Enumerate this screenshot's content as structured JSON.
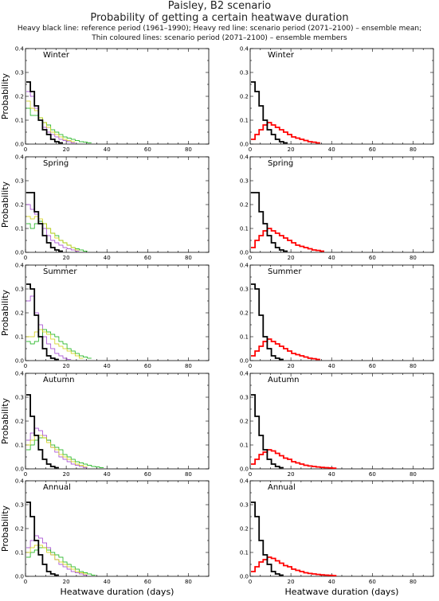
{
  "header": {
    "title": "Paisley, B2 scenario",
    "subtitle": "Probability of getting a certain heatwave duration",
    "note1": "Heavy black line: reference period (1961–1990); Heavy red line: scenario period (2071–2100) – ensemble mean;",
    "note2": "Thin coloured lines: scenario period (2071–2100) – ensemble members"
  },
  "colors": {
    "reference": "#000000",
    "ensemble_mean": "#ff0000",
    "members": [
      "#9933cc",
      "#00aa00",
      "#cccc00",
      "#3366ff",
      "#ff8800",
      "#00aaaa"
    ]
  },
  "chart_data": [
    {
      "season": "Winter",
      "panel": "left",
      "type": "line",
      "ylabel": "Probability",
      "xlabel": "",
      "xlim": [
        0,
        90
      ],
      "ylim": [
        0,
        0.4
      ],
      "x_ticks": [
        0,
        20,
        40,
        60,
        80
      ],
      "y_ticks": [
        "0.0",
        "0.1",
        "0.2",
        "0.3",
        "0.4"
      ],
      "reference": [
        0.26,
        0.22,
        0.16,
        0.1,
        0.06,
        0.04,
        0.02,
        0.01,
        0.005
      ],
      "members": [
        [
          0.22,
          0.2,
          0.15,
          0.1,
          0.07,
          0.05,
          0.04,
          0.03,
          0.02,
          0.015,
          0.01,
          0.005
        ],
        [
          0.15,
          0.12,
          0.12,
          0.11,
          0.09,
          0.08,
          0.06,
          0.05,
          0.04,
          0.03,
          0.025,
          0.02,
          0.015,
          0.01,
          0.008,
          0.005
        ],
        [
          0.18,
          0.15,
          0.14,
          0.11,
          0.09,
          0.07,
          0.05,
          0.04,
          0.03,
          0.02,
          0.015,
          0.01
        ]
      ]
    },
    {
      "season": "Winter",
      "panel": "right",
      "type": "line",
      "ylabel": "",
      "xlabel": "",
      "xlim": [
        0,
        90
      ],
      "ylim": [
        0,
        0.4
      ],
      "x_ticks": [
        0,
        20,
        40,
        60,
        80
      ],
      "y_ticks": [
        "0.0",
        "0.1",
        "0.2",
        "0.3",
        "0.4"
      ],
      "reference": [
        0.26,
        0.22,
        0.16,
        0.1,
        0.06,
        0.04,
        0.02,
        0.01,
        0.005
      ],
      "mean": [
        0.02,
        0.04,
        0.06,
        0.08,
        0.09,
        0.08,
        0.07,
        0.06,
        0.05,
        0.04,
        0.03,
        0.025,
        0.02,
        0.015,
        0.01,
        0.008,
        0.005
      ]
    },
    {
      "season": "Spring",
      "panel": "left",
      "type": "line",
      "ylabel": "Probability",
      "xlabel": "",
      "xlim": [
        0,
        90
      ],
      "ylim": [
        0,
        0.4
      ],
      "x_ticks": [
        0,
        20,
        40,
        60,
        80
      ],
      "y_ticks": [
        "0.0",
        "0.1",
        "0.2",
        "0.3",
        "0.4"
      ],
      "reference": [
        0.25,
        0.25,
        0.17,
        0.12,
        0.07,
        0.04,
        0.02,
        0.01,
        0.005
      ],
      "members": [
        [
          0.2,
          0.18,
          0.16,
          0.13,
          0.1,
          0.07,
          0.05,
          0.04,
          0.03,
          0.02,
          0.015,
          0.01,
          0.005
        ],
        [
          0.12,
          0.1,
          0.12,
          0.13,
          0.12,
          0.1,
          0.08,
          0.07,
          0.05,
          0.04,
          0.03,
          0.02,
          0.015,
          0.01,
          0.005
        ],
        [
          0.15,
          0.14,
          0.15,
          0.14,
          0.12,
          0.1,
          0.08,
          0.06,
          0.05,
          0.04,
          0.03,
          0.02,
          0.01
        ]
      ]
    },
    {
      "season": "Spring",
      "panel": "right",
      "type": "line",
      "ylabel": "",
      "xlabel": "",
      "xlim": [
        0,
        90
      ],
      "ylim": [
        0,
        0.4
      ],
      "x_ticks": [
        0,
        20,
        40,
        60,
        80
      ],
      "y_ticks": [
        "0.0",
        "0.1",
        "0.2",
        "0.3",
        "0.4"
      ],
      "reference": [
        0.25,
        0.25,
        0.17,
        0.12,
        0.07,
        0.04,
        0.02,
        0.01,
        0.005
      ],
      "mean": [
        0.02,
        0.05,
        0.07,
        0.09,
        0.1,
        0.09,
        0.08,
        0.07,
        0.06,
        0.05,
        0.04,
        0.03,
        0.025,
        0.02,
        0.015,
        0.01,
        0.008,
        0.005
      ]
    },
    {
      "season": "Summer",
      "panel": "left",
      "type": "line",
      "ylabel": "Probability",
      "xlabel": "",
      "xlim": [
        0,
        90
      ],
      "ylim": [
        0,
        0.4
      ],
      "x_ticks": [
        0,
        20,
        40,
        60,
        80
      ],
      "y_ticks": [
        "0.0",
        "0.1",
        "0.2",
        "0.3",
        "0.4"
      ],
      "reference": [
        0.32,
        0.3,
        0.19,
        0.1,
        0.05,
        0.02,
        0.01,
        0.005
      ],
      "members": [
        [
          0.25,
          0.27,
          0.2,
          0.15,
          0.1,
          0.07,
          0.05,
          0.03,
          0.02,
          0.01,
          0.005
        ],
        [
          0.08,
          0.07,
          0.08,
          0.1,
          0.13,
          0.12,
          0.11,
          0.1,
          0.08,
          0.07,
          0.05,
          0.04,
          0.03,
          0.02,
          0.015,
          0.01
        ],
        [
          0.1,
          0.1,
          0.12,
          0.13,
          0.12,
          0.11,
          0.09,
          0.07,
          0.06,
          0.05,
          0.04,
          0.03,
          0.02,
          0.01
        ]
      ]
    },
    {
      "season": "Summer",
      "panel": "right",
      "type": "line",
      "ylabel": "",
      "xlabel": "",
      "xlim": [
        0,
        90
      ],
      "ylim": [
        0,
        0.4
      ],
      "x_ticks": [
        0,
        20,
        40,
        60,
        80
      ],
      "y_ticks": [
        "0.0",
        "0.1",
        "0.2",
        "0.3",
        "0.4"
      ],
      "reference": [
        0.32,
        0.3,
        0.19,
        0.1,
        0.05,
        0.02,
        0.01,
        0.005
      ],
      "mean": [
        0.02,
        0.04,
        0.06,
        0.08,
        0.09,
        0.08,
        0.07,
        0.06,
        0.05,
        0.04,
        0.03,
        0.025,
        0.02,
        0.015,
        0.01,
        0.008,
        0.005
      ]
    },
    {
      "season": "Autumn",
      "panel": "left",
      "type": "line",
      "ylabel": "Probability",
      "xlabel": "",
      "xlim": [
        0,
        90
      ],
      "ylim": [
        0,
        0.4
      ],
      "x_ticks": [
        0,
        20,
        40,
        60,
        80
      ],
      "y_ticks": [
        "0.0",
        "0.1",
        "0.2",
        "0.3",
        "0.4"
      ],
      "reference": [
        0.31,
        0.22,
        0.14,
        0.08,
        0.04,
        0.02,
        0.01,
        0.005
      ],
      "members": [
        [
          0.12,
          0.15,
          0.17,
          0.16,
          0.14,
          0.12,
          0.09,
          0.07,
          0.05,
          0.04,
          0.03,
          0.02,
          0.015,
          0.01,
          0.005
        ],
        [
          0.08,
          0.1,
          0.12,
          0.13,
          0.13,
          0.12,
          0.1,
          0.09,
          0.08,
          0.06,
          0.05,
          0.04,
          0.03,
          0.025,
          0.02,
          0.015,
          0.01,
          0.008,
          0.005
        ],
        [
          0.1,
          0.12,
          0.14,
          0.14,
          0.13,
          0.11,
          0.09,
          0.08,
          0.06,
          0.05,
          0.04,
          0.03,
          0.02,
          0.015,
          0.01
        ]
      ]
    },
    {
      "season": "Autumn",
      "panel": "right",
      "type": "line",
      "ylabel": "",
      "xlabel": "",
      "xlim": [
        0,
        90
      ],
      "ylim": [
        0,
        0.4
      ],
      "x_ticks": [
        0,
        20,
        40,
        60,
        80
      ],
      "y_ticks": [
        "0.0",
        "0.1",
        "0.2",
        "0.3",
        "0.4"
      ],
      "reference": [
        0.31,
        0.22,
        0.14,
        0.08,
        0.04,
        0.02,
        0.01,
        0.005
      ],
      "mean": [
        0.02,
        0.04,
        0.06,
        0.07,
        0.08,
        0.075,
        0.065,
        0.055,
        0.045,
        0.04,
        0.03,
        0.025,
        0.02,
        0.015,
        0.012,
        0.01,
        0.008,
        0.006,
        0.005,
        0.004,
        0.003
      ]
    },
    {
      "season": "Annual",
      "panel": "left",
      "type": "line",
      "ylabel": "Probability",
      "xlabel": "Heatwave duration (days)",
      "xlim": [
        0,
        90
      ],
      "ylim": [
        0,
        0.4
      ],
      "x_ticks": [
        0,
        20,
        40,
        60,
        80
      ],
      "y_ticks": [
        "0.0",
        "0.1",
        "0.2",
        "0.3",
        "0.4"
      ],
      "reference": [
        0.31,
        0.25,
        0.15,
        0.09,
        0.05,
        0.02,
        0.01,
        0.005
      ],
      "members": [
        [
          0.12,
          0.15,
          0.17,
          0.16,
          0.14,
          0.12,
          0.09,
          0.07,
          0.05,
          0.04,
          0.03,
          0.02,
          0.015,
          0.01,
          0.005
        ],
        [
          0.08,
          0.1,
          0.11,
          0.12,
          0.12,
          0.11,
          0.1,
          0.09,
          0.08,
          0.06,
          0.05,
          0.04,
          0.03,
          0.02,
          0.015,
          0.01,
          0.005
        ],
        [
          0.1,
          0.12,
          0.13,
          0.13,
          0.12,
          0.1,
          0.09,
          0.07,
          0.06,
          0.05,
          0.04,
          0.03,
          0.02,
          0.015,
          0.01
        ]
      ]
    },
    {
      "season": "Annual",
      "panel": "right",
      "type": "line",
      "ylabel": "",
      "xlabel": "Heatwave duration (days)",
      "xlim": [
        0,
        90
      ],
      "ylim": [
        0,
        0.4
      ],
      "x_ticks": [
        0,
        20,
        40,
        60,
        80
      ],
      "y_ticks": [
        "0.0",
        "0.1",
        "0.2",
        "0.3",
        "0.4"
      ],
      "reference": [
        0.31,
        0.25,
        0.15,
        0.09,
        0.05,
        0.02,
        0.01,
        0.005
      ],
      "mean": [
        0.02,
        0.04,
        0.06,
        0.07,
        0.08,
        0.075,
        0.065,
        0.055,
        0.045,
        0.04,
        0.03,
        0.025,
        0.02,
        0.015,
        0.012,
        0.01,
        0.008,
        0.006,
        0.005,
        0.004,
        0.003
      ]
    }
  ]
}
